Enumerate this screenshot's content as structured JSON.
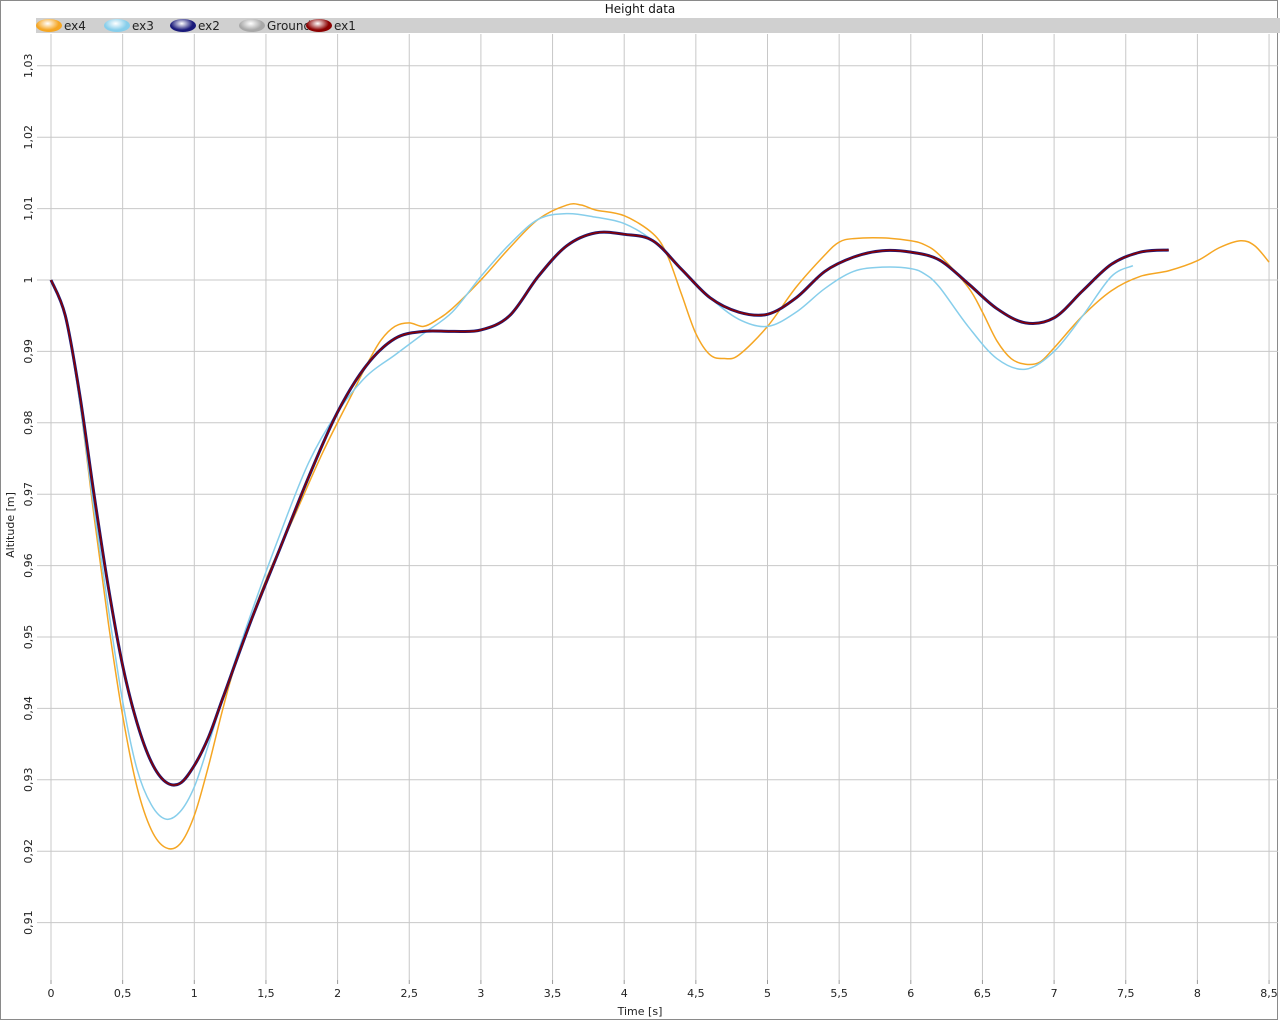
{
  "chart_data": {
    "type": "line",
    "title": "Height data",
    "xlabel": "Time [s]",
    "ylabel": "Altitude [m]",
    "xlim": [
      0,
      8.5
    ],
    "ylim": [
      0.902,
      1.034
    ],
    "grid": true,
    "legend_position": "top",
    "x_ticks": [
      "0",
      "0,5",
      "1",
      "1,5",
      "2",
      "2,5",
      "3",
      "3,5",
      "4",
      "4,5",
      "5",
      "5,5",
      "6",
      "6,5",
      "7",
      "7,5",
      "8",
      "8,5"
    ],
    "y_ticks": [
      "0,91",
      "0,92",
      "0,93",
      "0,94",
      "0,95",
      "0,96",
      "0,97",
      "0,98",
      "0,99",
      "1",
      "1,01",
      "1,02",
      "1,03"
    ],
    "legend": [
      {
        "name": "ex4",
        "color": "#f5a623"
      },
      {
        "name": "ex3",
        "color": "#87ceeb"
      },
      {
        "name": "ex2",
        "color": "#1a1a7a"
      },
      {
        "name": "Ground",
        "color": "#a8a8a8"
      },
      {
        "name": "ex1",
        "color": "#8b0000"
      }
    ],
    "series": [
      {
        "name": "ex4",
        "color": "#f5a623",
        "width": 1.5,
        "points": [
          [
            0,
            1.0
          ],
          [
            0.1,
            0.995
          ],
          [
            0.2,
            0.983
          ],
          [
            0.3,
            0.967
          ],
          [
            0.4,
            0.952
          ],
          [
            0.5,
            0.939
          ],
          [
            0.6,
            0.929
          ],
          [
            0.7,
            0.923
          ],
          [
            0.8,
            0.9205
          ],
          [
            0.9,
            0.921
          ],
          [
            1.0,
            0.925
          ],
          [
            1.1,
            0.932
          ],
          [
            1.2,
            0.94
          ],
          [
            1.3,
            0.947
          ],
          [
            1.5,
            0.958
          ],
          [
            1.7,
            0.967
          ],
          [
            1.9,
            0.976
          ],
          [
            2.1,
            0.984
          ],
          [
            2.2,
            0.988
          ],
          [
            2.3,
            0.9915
          ],
          [
            2.4,
            0.9935
          ],
          [
            2.5,
            0.994
          ],
          [
            2.6,
            0.9935
          ],
          [
            2.7,
            0.9945
          ],
          [
            2.8,
            0.996
          ],
          [
            3.0,
            1.0
          ],
          [
            3.2,
            1.0045
          ],
          [
            3.4,
            1.0085
          ],
          [
            3.6,
            1.0105
          ],
          [
            3.7,
            1.0105
          ],
          [
            3.8,
            1.0098
          ],
          [
            4.0,
            1.009
          ],
          [
            4.2,
            1.0065
          ],
          [
            4.3,
            1.0035
          ],
          [
            4.4,
            0.998
          ],
          [
            4.5,
            0.9925
          ],
          [
            4.6,
            0.9895
          ],
          [
            4.7,
            0.989
          ],
          [
            4.8,
            0.9895
          ],
          [
            5.0,
            0.9935
          ],
          [
            5.2,
            0.999
          ],
          [
            5.4,
            1.0035
          ],
          [
            5.5,
            1.0053
          ],
          [
            5.6,
            1.0058
          ],
          [
            5.8,
            1.0059
          ],
          [
            6.0,
            1.0055
          ],
          [
            6.1,
            1.0049
          ],
          [
            6.2,
            1.0035
          ],
          [
            6.4,
            0.999
          ],
          [
            6.5,
            0.9955
          ],
          [
            6.6,
            0.9915
          ],
          [
            6.7,
            0.989
          ],
          [
            6.8,
            0.9882
          ],
          [
            6.9,
            0.9885
          ],
          [
            7.0,
            0.9905
          ],
          [
            7.2,
            0.995
          ],
          [
            7.4,
            0.9985
          ],
          [
            7.6,
            1.0005
          ],
          [
            7.8,
            1.0013
          ],
          [
            8.0,
            1.0027
          ],
          [
            8.15,
            1.0045
          ],
          [
            8.3,
            1.0055
          ],
          [
            8.4,
            1.0048
          ],
          [
            8.5,
            1.0025
          ]
        ]
      },
      {
        "name": "ex3",
        "color": "#87ceeb",
        "width": 1.5,
        "points": [
          [
            0,
            1.0
          ],
          [
            0.1,
            0.995
          ],
          [
            0.2,
            0.983
          ],
          [
            0.3,
            0.968
          ],
          [
            0.4,
            0.954
          ],
          [
            0.5,
            0.941
          ],
          [
            0.6,
            0.9315
          ],
          [
            0.7,
            0.9265
          ],
          [
            0.8,
            0.9245
          ],
          [
            0.9,
            0.9255
          ],
          [
            1.0,
            0.929
          ],
          [
            1.1,
            0.935
          ],
          [
            1.2,
            0.9415
          ],
          [
            1.4,
            0.9535
          ],
          [
            1.6,
            0.9645
          ],
          [
            1.8,
            0.9745
          ],
          [
            2.0,
            0.9815
          ],
          [
            2.2,
            0.9865
          ],
          [
            2.4,
            0.9895
          ],
          [
            2.6,
            0.9925
          ],
          [
            2.8,
            0.9955
          ],
          [
            3.0,
            1.0005
          ],
          [
            3.2,
            1.005
          ],
          [
            3.4,
            1.0085
          ],
          [
            3.6,
            1.0093
          ],
          [
            3.8,
            1.0088
          ],
          [
            4.0,
            1.0079
          ],
          [
            4.2,
            1.0055
          ],
          [
            4.4,
            1.0015
          ],
          [
            4.6,
            0.9975
          ],
          [
            4.8,
            0.9945
          ],
          [
            5.0,
            0.9935
          ],
          [
            5.2,
            0.9955
          ],
          [
            5.4,
            0.9988
          ],
          [
            5.6,
            1.0012
          ],
          [
            5.8,
            1.0018
          ],
          [
            6.0,
            1.0016
          ],
          [
            6.1,
            1.0008
          ],
          [
            6.2,
            0.999
          ],
          [
            6.4,
            0.9935
          ],
          [
            6.6,
            0.989
          ],
          [
            6.8,
            0.9875
          ],
          [
            7.0,
            0.99
          ],
          [
            7.2,
            0.995
          ],
          [
            7.4,
            1.0005
          ],
          [
            7.55,
            1.002
          ]
        ]
      },
      {
        "name": "ex2",
        "color": "#1a1a7a",
        "width": 3,
        "points": [
          [
            0,
            1.0
          ],
          [
            0.1,
            0.995
          ],
          [
            0.2,
            0.984
          ],
          [
            0.3,
            0.97
          ],
          [
            0.4,
            0.957
          ],
          [
            0.5,
            0.946
          ],
          [
            0.6,
            0.938
          ],
          [
            0.7,
            0.9325
          ],
          [
            0.8,
            0.9297
          ],
          [
            0.9,
            0.9295
          ],
          [
            1.0,
            0.932
          ],
          [
            1.1,
            0.936
          ],
          [
            1.2,
            0.9415
          ],
          [
            1.4,
            0.9525
          ],
          [
            1.6,
            0.9625
          ],
          [
            1.8,
            0.9725
          ],
          [
            2.0,
            0.9815
          ],
          [
            2.2,
            0.988
          ],
          [
            2.4,
            0.9918
          ],
          [
            2.6,
            0.9928
          ],
          [
            2.8,
            0.9928
          ],
          [
            3.0,
            0.993
          ],
          [
            3.2,
            0.995
          ],
          [
            3.4,
            1.0005
          ],
          [
            3.6,
            1.0048
          ],
          [
            3.8,
            1.0066
          ],
          [
            4.0,
            1.0064
          ],
          [
            4.2,
            1.0055
          ],
          [
            4.4,
            1.0015
          ],
          [
            4.6,
            0.9975
          ],
          [
            4.8,
            0.9955
          ],
          [
            5.0,
            0.9952
          ],
          [
            5.2,
            0.9975
          ],
          [
            5.4,
            1.0012
          ],
          [
            5.6,
            1.0032
          ],
          [
            5.8,
            1.0041
          ],
          [
            6.0,
            1.0039
          ],
          [
            6.2,
            1.0028
          ],
          [
            6.4,
            0.9995
          ],
          [
            6.6,
            0.996
          ],
          [
            6.8,
            0.994
          ],
          [
            7.0,
            0.9947
          ],
          [
            7.2,
            0.9985
          ],
          [
            7.4,
            1.0022
          ],
          [
            7.6,
            1.0039
          ],
          [
            7.8,
            1.0042
          ]
        ]
      },
      {
        "name": "ex1",
        "color": "#8b0000",
        "width": 1.5,
        "points": [
          [
            0,
            1.0
          ],
          [
            0.1,
            0.995
          ],
          [
            0.2,
            0.984
          ],
          [
            0.3,
            0.97
          ],
          [
            0.4,
            0.957
          ],
          [
            0.5,
            0.946
          ],
          [
            0.6,
            0.938
          ],
          [
            0.7,
            0.9325
          ],
          [
            0.8,
            0.9297
          ],
          [
            0.9,
            0.9295
          ],
          [
            1.0,
            0.932
          ],
          [
            1.1,
            0.936
          ],
          [
            1.2,
            0.9415
          ],
          [
            1.4,
            0.9525
          ],
          [
            1.6,
            0.9625
          ],
          [
            1.8,
            0.9725
          ],
          [
            2.0,
            0.9815
          ],
          [
            2.2,
            0.988
          ],
          [
            2.4,
            0.9918
          ],
          [
            2.6,
            0.9928
          ],
          [
            2.8,
            0.9928
          ],
          [
            3.0,
            0.993
          ],
          [
            3.2,
            0.995
          ],
          [
            3.4,
            1.0005
          ],
          [
            3.6,
            1.0048
          ],
          [
            3.8,
            1.0066
          ],
          [
            4.0,
            1.0064
          ],
          [
            4.2,
            1.0055
          ],
          [
            4.4,
            1.0015
          ],
          [
            4.6,
            0.9975
          ],
          [
            4.8,
            0.9955
          ],
          [
            5.0,
            0.9952
          ],
          [
            5.2,
            0.9975
          ],
          [
            5.4,
            1.0012
          ],
          [
            5.6,
            1.0032
          ],
          [
            5.8,
            1.0041
          ],
          [
            6.0,
            1.0039
          ],
          [
            6.2,
            1.0028
          ],
          [
            6.4,
            0.9995
          ],
          [
            6.6,
            0.996
          ],
          [
            6.8,
            0.994
          ],
          [
            7.0,
            0.9947
          ],
          [
            7.2,
            0.9985
          ],
          [
            7.4,
            1.0022
          ],
          [
            7.6,
            1.0039
          ],
          [
            7.8,
            1.0042
          ]
        ]
      }
    ]
  }
}
